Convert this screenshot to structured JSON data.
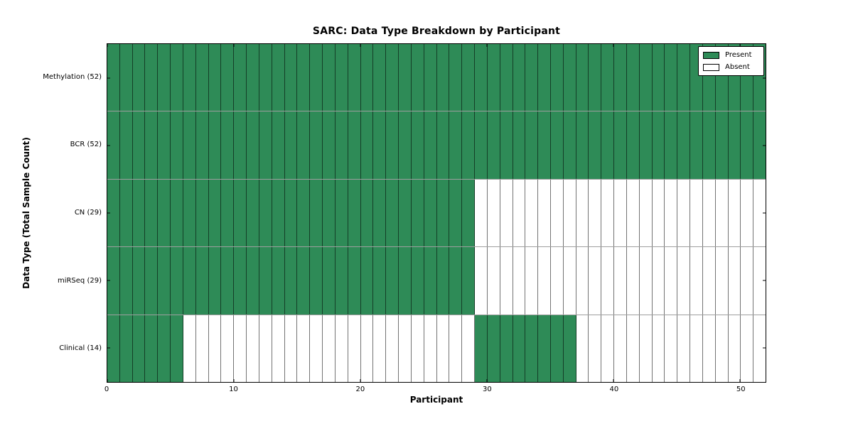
{
  "figure": {
    "background": "#ffffff"
  },
  "chart_data": {
    "type": "heatmap",
    "title": "SARC: Data Type Breakdown by Participant",
    "xlabel": "Participant",
    "ylabel": "Data Type (Total Sample Count)",
    "x_ticks": [
      0,
      10,
      20,
      30,
      40,
      50
    ],
    "x_range": [
      0,
      52
    ],
    "n_participants": 52,
    "rows": [
      {
        "label": "Methylation (52)",
        "data_type": "methylation",
        "total_samples": 52,
        "present_ranges": [
          [
            0,
            52
          ]
        ]
      },
      {
        "label": "BCR (52)",
        "data_type": "bcr",
        "total_samples": 52,
        "present_ranges": [
          [
            0,
            52
          ]
        ]
      },
      {
        "label": "CN (29)",
        "data_type": "cn",
        "total_samples": 29,
        "present_ranges": [
          [
            0,
            29
          ]
        ]
      },
      {
        "label": "miRSeq (29)",
        "data_type": "mirseq",
        "total_samples": 29,
        "present_ranges": [
          [
            0,
            29
          ]
        ]
      },
      {
        "label": "Clinical (14)",
        "data_type": "clinical",
        "total_samples": 14,
        "present_ranges": [
          [
            0,
            6
          ],
          [
            29,
            37
          ]
        ]
      }
    ],
    "legend": {
      "position": "upper right",
      "entries": [
        {
          "label": "Present",
          "color": "#2e8b57"
        },
        {
          "label": "Absent",
          "color": "#ffffff"
        }
      ]
    },
    "colors": {
      "present": "#2e8b57",
      "absent": "#ffffff",
      "grid_line": "rgba(0,0,0,0.55)",
      "row_line": "rgba(0,0,0,0.38)",
      "spine": "#000000"
    }
  }
}
